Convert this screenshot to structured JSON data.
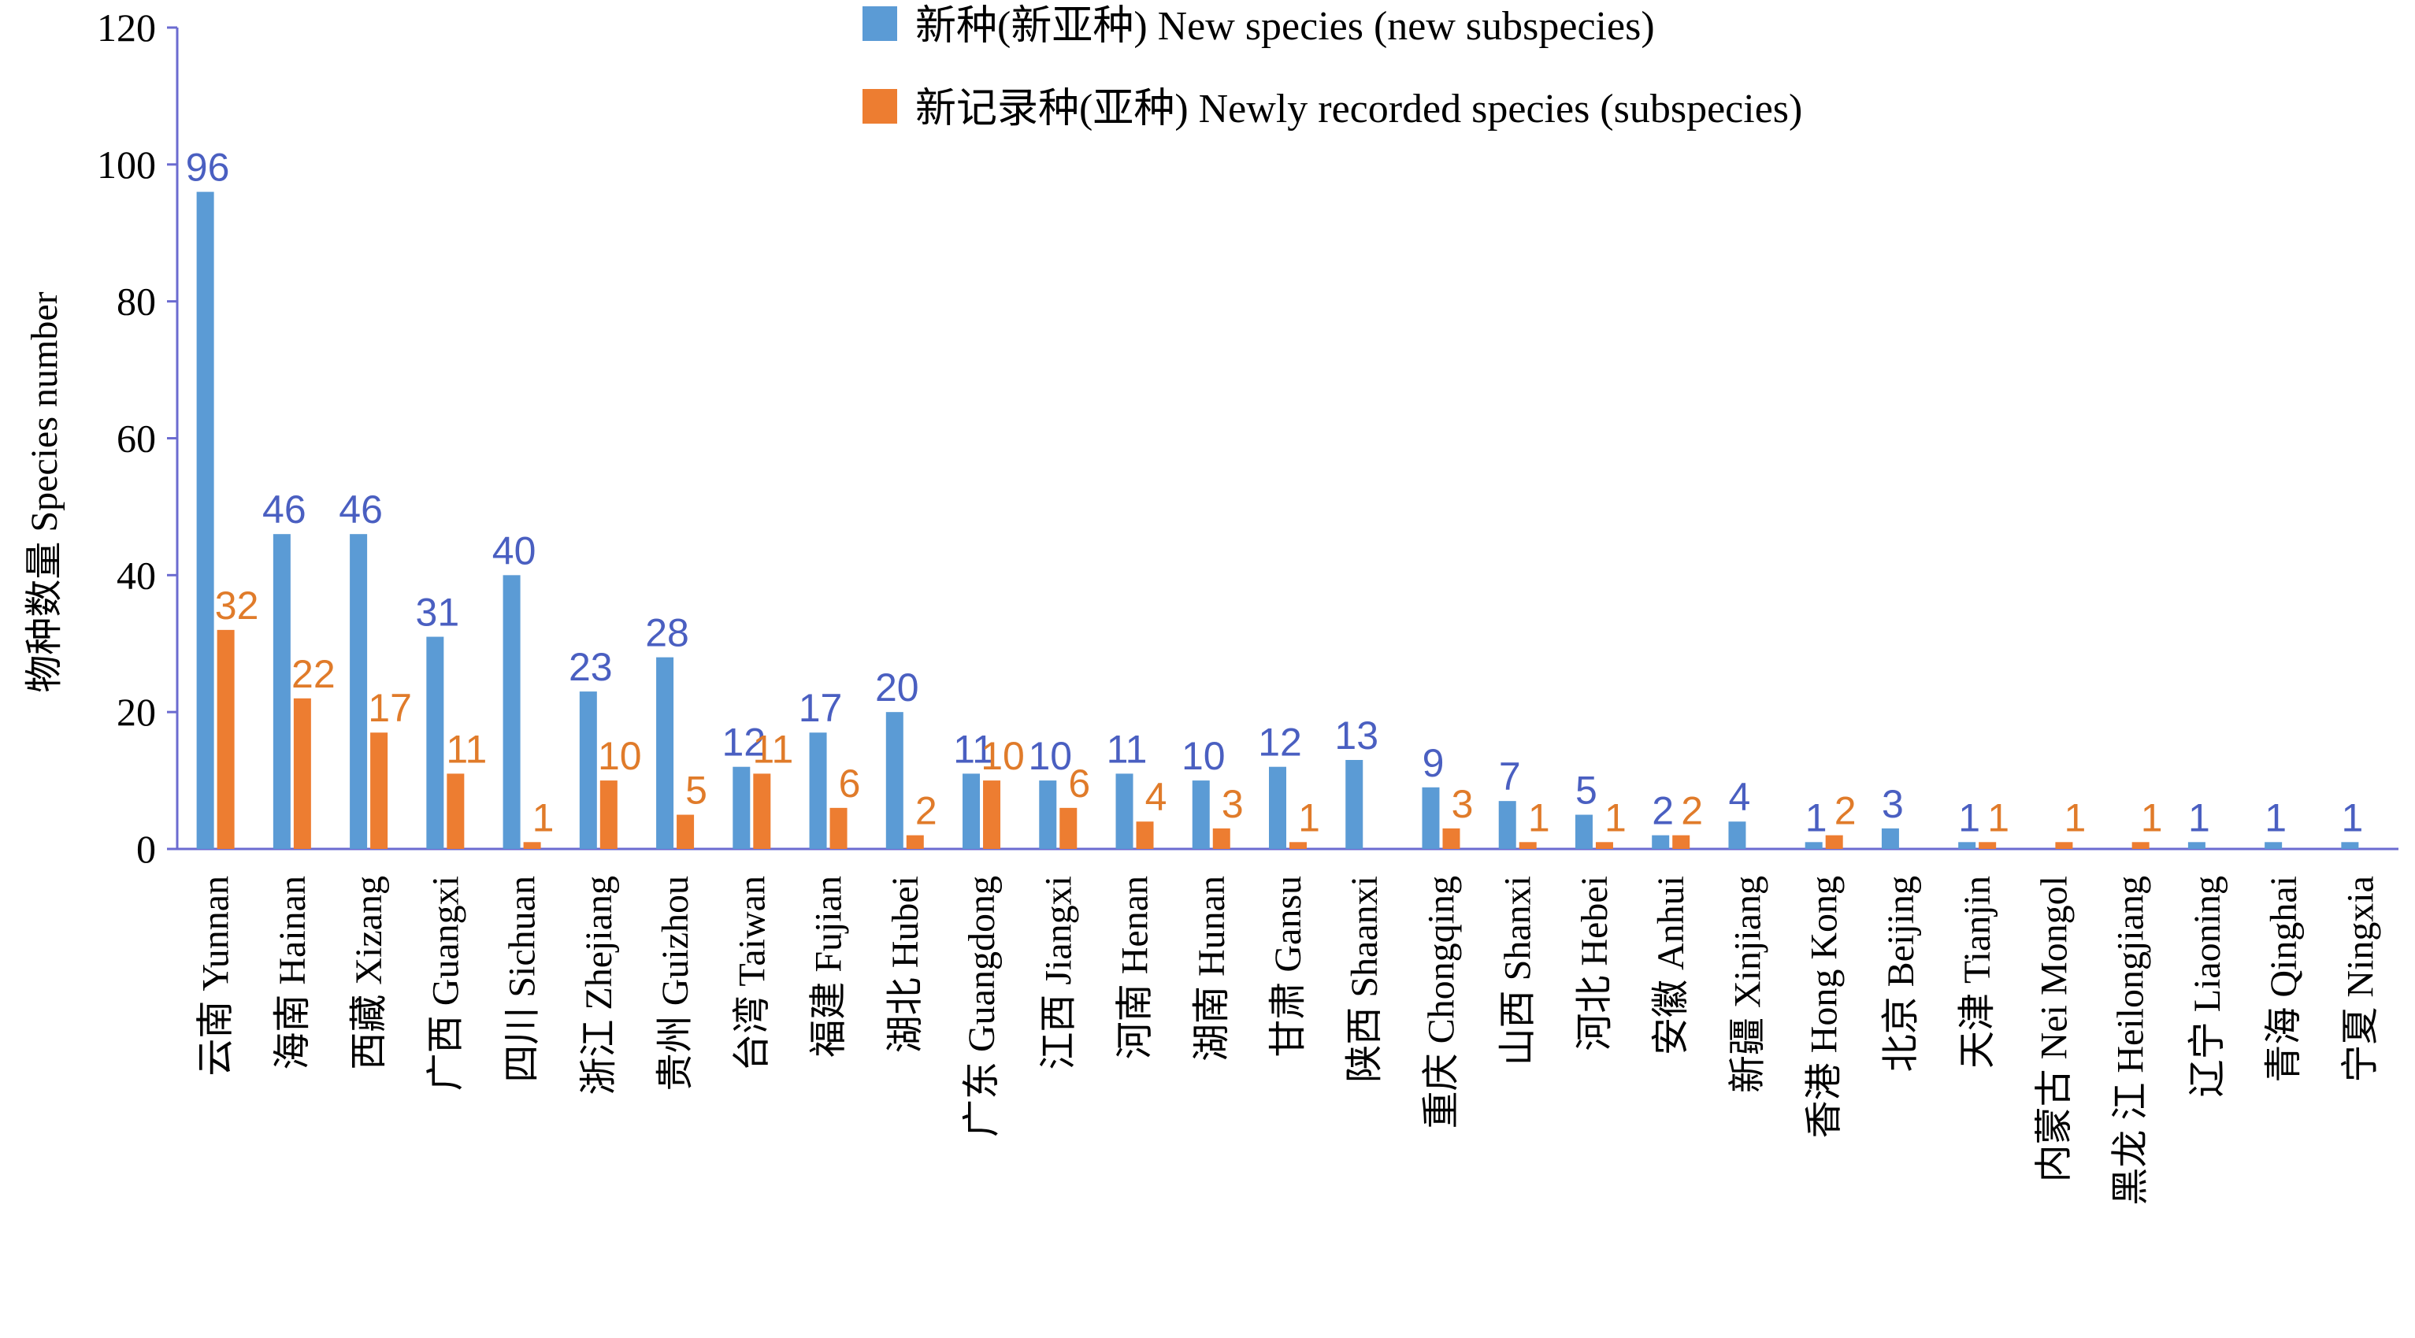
{
  "chart_data": {
    "type": "bar",
    "title": "",
    "xlabel": "",
    "ylabel": "物种数量 Species number",
    "ylim": [
      0,
      120
    ],
    "yticks": [
      "0",
      "20",
      "40",
      "60",
      "80",
      "100",
      "120"
    ],
    "legend_position": "top-right",
    "categories": [
      "云南 Yunnan",
      "海南 Hainan",
      "西藏 Xizang",
      "广西 Guangxi",
      "四川 Sichuan",
      "浙江 Zhejiang",
      "贵州 Guizhou",
      "台湾 Taiwan",
      "福建 Fujian",
      "湖北 Hubei",
      "广东 Guangdong",
      "江西 Jiangxi",
      "河南 Henan",
      "湖南 Hunan",
      "甘肃 Gansu",
      "陕西 Shaanxi",
      "重庆 Chongqing",
      "山西 Shanxi",
      "河北 Hebei",
      "安徽 Anhui",
      "新疆 Xinjiang",
      "香港 Hong Kong",
      "北京 Beijing",
      "天津 Tianjin",
      "内蒙古 Nei Mongol",
      "黑龙 江 Heilongjiang",
      "辽宁 Liaoning",
      "青海 Qinghai",
      "宁夏 Ningxia"
    ],
    "series": [
      {
        "name": "新种(新亚种) New species (new subspecies)",
        "color": "#5b9bd5",
        "label_color": "#4a5fc1",
        "values": [
          96,
          46,
          46,
          31,
          40,
          23,
          28,
          12,
          17,
          20,
          11,
          10,
          11,
          10,
          12,
          13,
          9,
          7,
          5,
          2,
          4,
          1,
          3,
          1,
          null,
          null,
          1,
          1,
          1
        ]
      },
      {
        "name": "新记录种(亚种) Newly recorded species (subspecies)",
        "color": "#ed7d31",
        "label_color": "#e07b2a",
        "values": [
          32,
          22,
          17,
          11,
          1,
          10,
          5,
          11,
          6,
          2,
          10,
          6,
          4,
          3,
          1,
          null,
          3,
          1,
          1,
          2,
          null,
          2,
          null,
          1,
          1,
          1,
          null,
          null,
          null
        ]
      }
    ]
  }
}
